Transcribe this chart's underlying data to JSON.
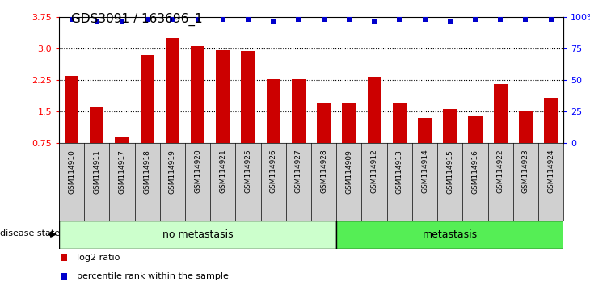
{
  "title": "GDS3091 / 163696_1",
  "samples": [
    "GSM114910",
    "GSM114911",
    "GSM114917",
    "GSM114918",
    "GSM114919",
    "GSM114920",
    "GSM114921",
    "GSM114925",
    "GSM114926",
    "GSM114927",
    "GSM114928",
    "GSM114909",
    "GSM114912",
    "GSM114913",
    "GSM114914",
    "GSM114915",
    "GSM114916",
    "GSM114922",
    "GSM114923",
    "GSM114924"
  ],
  "log2_values": [
    2.35,
    1.62,
    0.9,
    2.85,
    3.25,
    3.07,
    2.97,
    2.95,
    2.27,
    2.27,
    1.72,
    1.72,
    2.32,
    1.72,
    1.35,
    1.55,
    1.38,
    2.15,
    1.52,
    1.82
  ],
  "percentile_values": [
    100,
    88,
    88,
    100,
    100,
    100,
    100,
    100,
    88,
    100,
    100,
    100,
    88,
    100,
    100,
    88,
    100,
    100,
    100,
    100
  ],
  "ylim": [
    0.75,
    3.75
  ],
  "yticks_left": [
    0.75,
    1.5,
    2.25,
    3.0,
    3.75
  ],
  "yticks_right": [
    0,
    25,
    50,
    75,
    100
  ],
  "bar_color": "#cc0000",
  "dot_color": "#0000cc",
  "no_metastasis_count": 11,
  "metastasis_count": 9,
  "no_metastasis_color": "#ccffcc",
  "metastasis_color": "#55ee55",
  "label_log2": "log2 ratio",
  "label_percentile": "percentile rank within the sample",
  "disease_state_label": "disease state",
  "no_metastasis_label": "no metastasis",
  "metastasis_label": "metastasis",
  "tick_bg_color": "#d0d0d0",
  "fig_bg": "#ffffff"
}
